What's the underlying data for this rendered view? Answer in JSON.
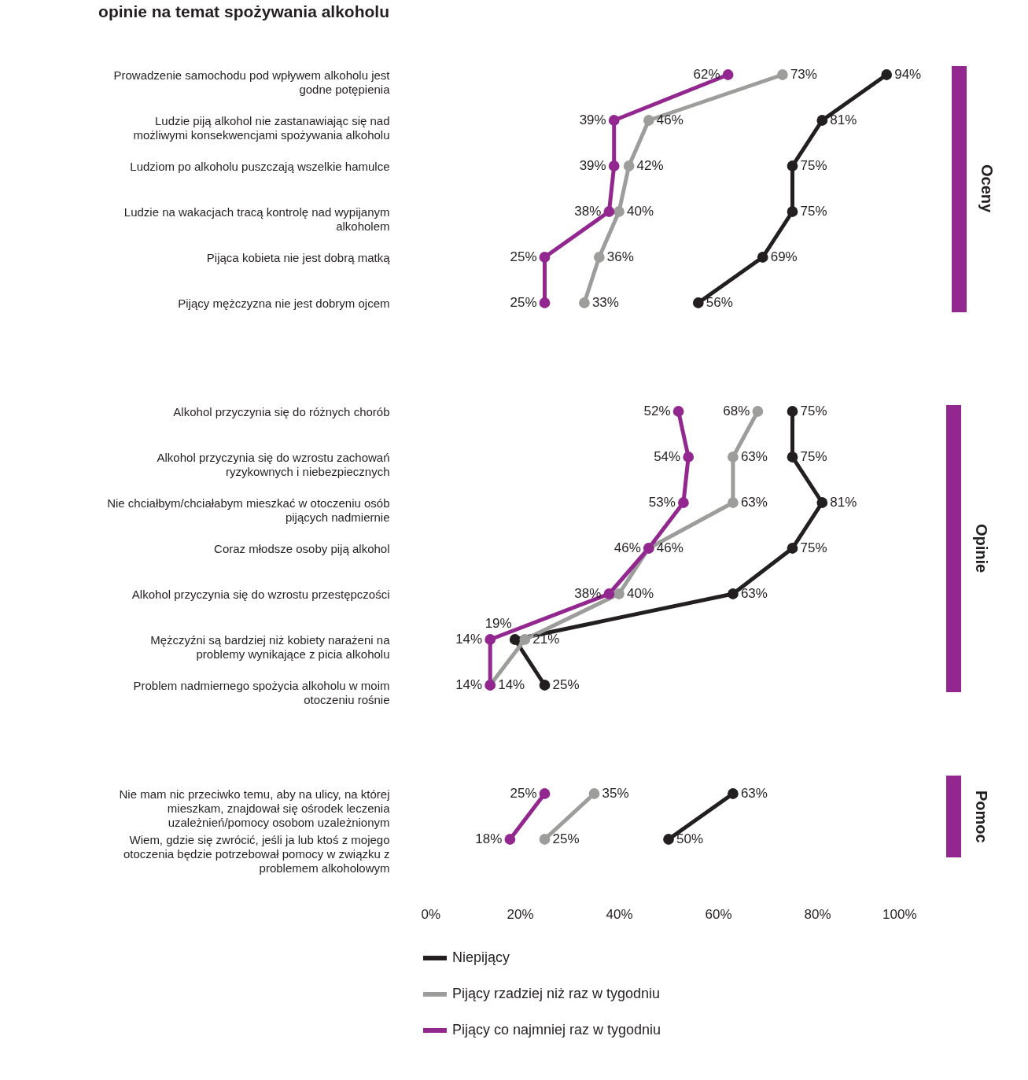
{
  "chart_data": [
    {
      "type": "line",
      "title": "opinie na temat spożywania alkoholu",
      "y2label": "Oceny",
      "orientation": "horizontal",
      "categories": [
        "Prowadzenie samochodu pod wpływem alkoholu jest godne potępienia",
        "Ludzie piją alkohol nie zastanawiając się nad możliwymi konsekwencjami spożywania alkoholu",
        "Ludziom po alkoholu puszczają wszelkie hamulce",
        "Ludzie na wakacjach tracą kontrolę nad wypijanym alkoholem",
        "Pijąca kobieta nie jest dobrą matką",
        "Pijący mężczyzna nie jest dobrym ojcem"
      ],
      "series": [
        {
          "color": "#231f20",
          "values": [
            94,
            81,
            75,
            75,
            69,
            56
          ],
          "value_labels": [
            "94%",
            "81%",
            "75%",
            "75%",
            "69%",
            "56%"
          ]
        },
        {
          "color": "#9d9d9c",
          "values": [
            73,
            46,
            42,
            40,
            36,
            33
          ],
          "value_labels": [
            "73%",
            "46%",
            "42%",
            "40%",
            "36%",
            "33%"
          ]
        },
        {
          "color": "#92278f",
          "values": [
            62,
            39,
            39,
            38,
            25,
            25
          ],
          "value_labels": [
            "62%",
            "39%",
            "39%",
            "38%",
            "25%",
            "25%"
          ]
        }
      ],
      "xlim": [
        0,
        100
      ],
      "tick_labels": "y",
      "marker": "circle",
      "line_style": "solid"
    },
    {
      "type": "line",
      "y2label": "Opinie",
      "orientation": "horizontal",
      "categories": [
        "Alkohol przyczynia się do różnych chorób",
        "Alkohol przyczynia się do wzrostu zachowań ryzykownych i niebezpiecznych",
        "Nie chciałbym/chciałabym mieszkać w otoczeniu osób pijących nadmiernie",
        "Coraz młodsze osoby piją alkohol",
        "Alkohol przyczynia się do wzrostu przestępczości",
        "Mężczyźni są bardziej niż kobiety narażeni na problemy wynikające z picia alkoholu",
        "Problem nadmiernego spożycia alkoholu w moim otoczeniu rośnie"
      ],
      "series": [
        {
          "color": "#231f20",
          "values": [
            75,
            75,
            81,
            75,
            63,
            19,
            25
          ],
          "value_labels": [
            "75%",
            "75%",
            "81%",
            "75%",
            "63%",
            "19%",
            "25%"
          ]
        },
        {
          "color": "#9d9d9c",
          "values": [
            68,
            63,
            63,
            46,
            40,
            21,
            14
          ],
          "value_labels": [
            "68%",
            "63%",
            "63%",
            "46%",
            "40%",
            "21%",
            "14%"
          ]
        },
        {
          "color": "#92278f",
          "values": [
            52,
            54,
            53,
            46,
            38,
            14,
            14
          ],
          "value_labels": [
            "52%",
            "54%",
            "53%",
            "46%",
            "38%",
            "14%",
            "14%"
          ]
        }
      ],
      "xlim": [
        0,
        100
      ],
      "tick_labels": "y",
      "marker": "circle",
      "line_style": "solid"
    },
    {
      "type": "line",
      "y2label": "Pomoc",
      "orientation": "horizontal",
      "categories": [
        "Nie mam nic przeciwko temu, aby na ulicy, na której mieszkam, znajdował się ośrodek leczenia uzależnień/pomocy osobom uzależnionym",
        "Wiem, gdzie się zwrócić, jeśli ja lub ktoś z mojego otoczenia będzie potrzebował pomocy w związku z problemem alkoholowym"
      ],
      "series": [
        {
          "name": "Niepijący",
          "color": "#231f20",
          "values": [
            63,
            50
          ],
          "value_labels": [
            "63%",
            "50%"
          ]
        },
        {
          "name": "Pijący rzadziej niż raz w tygodniu",
          "color": "#9d9d9c",
          "values": [
            35,
            25
          ],
          "value_labels": [
            "35%",
            "25%"
          ]
        },
        {
          "name": "Pijący co najmniej raz w tygodniu",
          "color": "#92278f",
          "values": [
            25,
            18
          ],
          "value_labels": [
            "25%",
            "18%"
          ]
        }
      ],
      "xlim": [
        0,
        100
      ],
      "xticks": [
        {
          "value": 0,
          "label": "0%"
        },
        {
          "value": 20,
          "label": "20%"
        },
        {
          "value": 40,
          "label": "40%"
        },
        {
          "value": 60,
          "label": "60%"
        },
        {
          "value": 80,
          "label": "80%"
        },
        {
          "value": 100,
          "label": "100%"
        }
      ],
      "legend": "bottom",
      "marker": "circle",
      "line_style": "solid"
    }
  ]
}
